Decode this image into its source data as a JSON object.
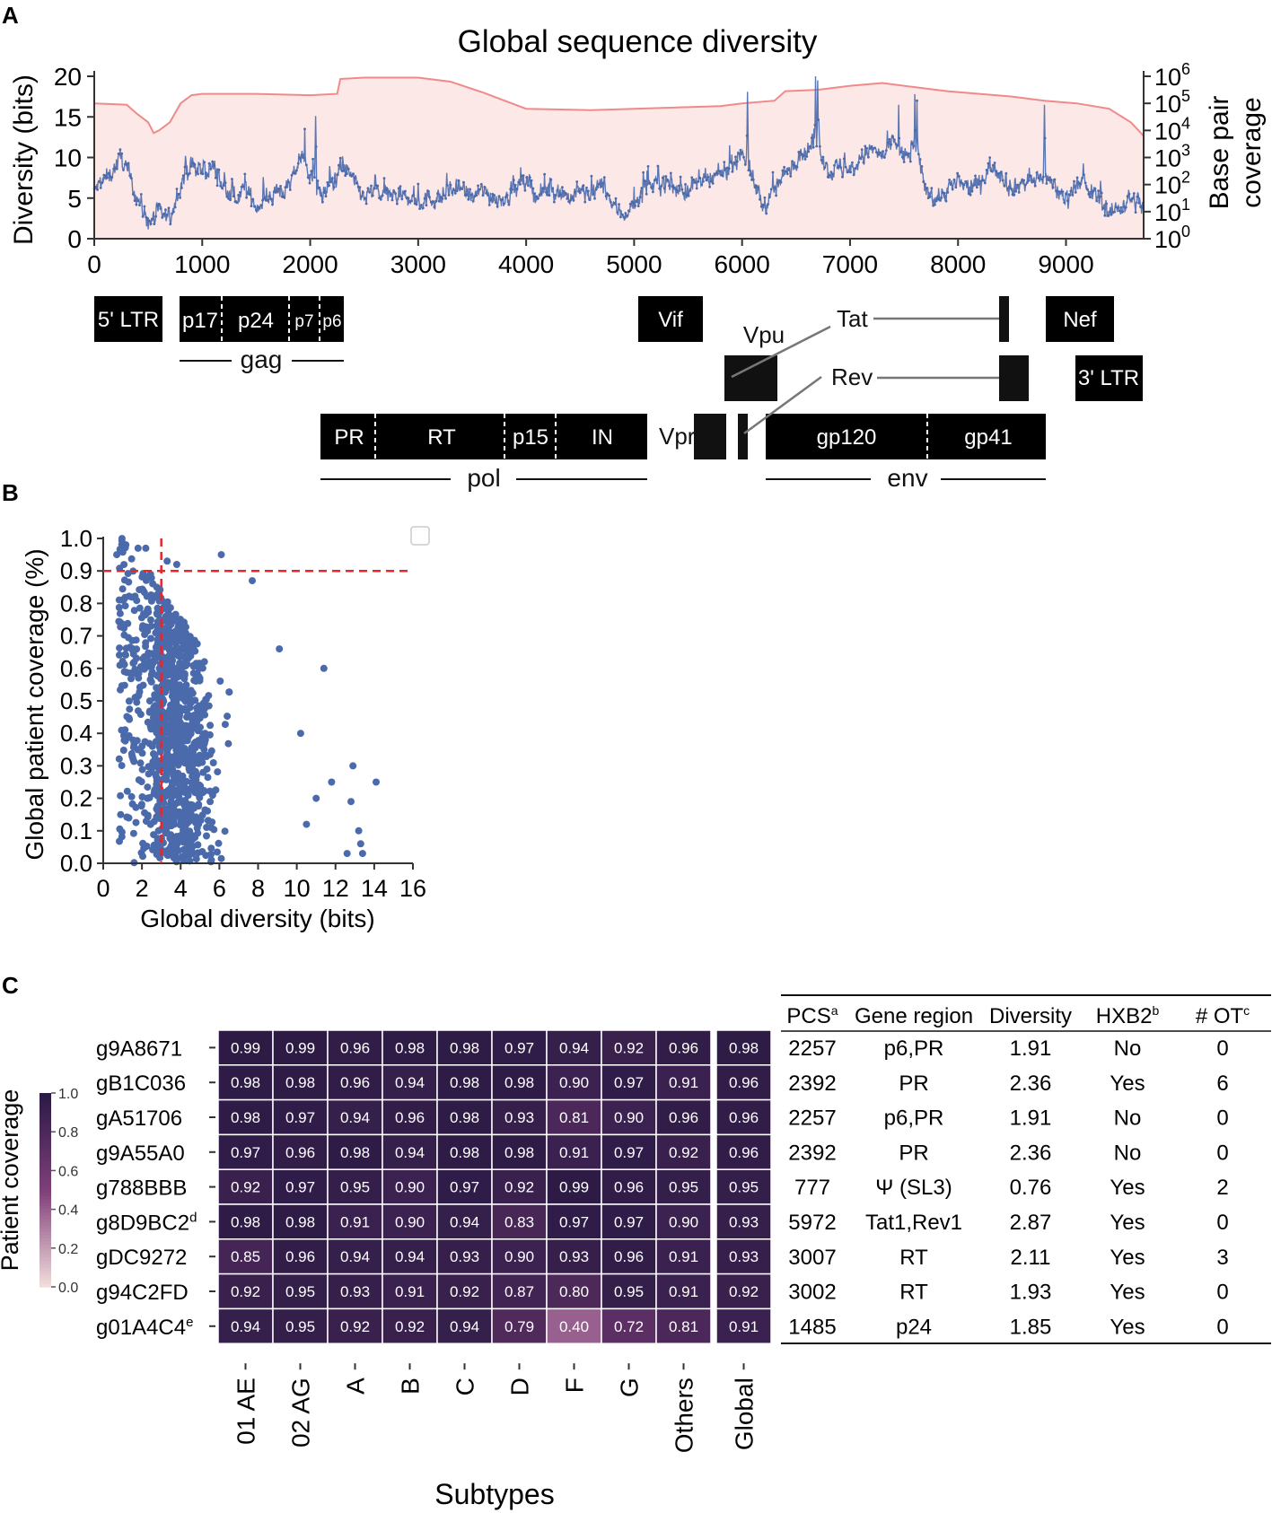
{
  "panels": {
    "a": "A",
    "b": "B",
    "c": "C"
  },
  "colors": {
    "series": "#4a6aab",
    "coverage_line": "#f08a8a",
    "coverage_fill": "#fde8e8",
    "threshold": "#e8262a",
    "gene_box": "#000000",
    "heat_low": "#f4e1dd",
    "heat_high": "#2b1a45"
  },
  "chart_data": [
    {
      "type": "line",
      "panel": "A",
      "title": "Global sequence diversity",
      "ylabel": "Diversity (bits)",
      "y2label": [
        "Base pair",
        "coverage"
      ],
      "xlim": [
        0,
        9719
      ],
      "ylim": [
        0,
        20
      ],
      "x_ticks": [
        0,
        1000,
        2000,
        3000,
        4000,
        5000,
        6000,
        7000,
        8000,
        9000
      ],
      "y_ticks": [
        0,
        5,
        10,
        15,
        20
      ],
      "y2_ticks": [
        {
          "base": "10",
          "exp": "0"
        },
        {
          "base": "10",
          "exp": "1"
        },
        {
          "base": "10",
          "exp": "2"
        },
        {
          "base": "10",
          "exp": "3"
        },
        {
          "base": "10",
          "exp": "4"
        },
        {
          "base": "10",
          "exp": "5"
        },
        {
          "base": "10",
          "exp": "6"
        }
      ],
      "y2_range_log10": [
        0,
        6
      ],
      "coverage_log10": [
        [
          0,
          5.0
        ],
        [
          300,
          4.95
        ],
        [
          400,
          4.6
        ],
        [
          500,
          4.3
        ],
        [
          550,
          3.9
        ],
        [
          600,
          4.0
        ],
        [
          700,
          4.3
        ],
        [
          800,
          5.0
        ],
        [
          900,
          5.3
        ],
        [
          1000,
          5.35
        ],
        [
          1500,
          5.35
        ],
        [
          2000,
          5.3
        ],
        [
          2250,
          5.35
        ],
        [
          2280,
          5.9
        ],
        [
          2500,
          5.95
        ],
        [
          3000,
          5.95
        ],
        [
          3300,
          5.8
        ],
        [
          3600,
          5.4
        ],
        [
          4000,
          4.8
        ],
        [
          4600,
          4.75
        ],
        [
          5000,
          4.8
        ],
        [
          5400,
          4.85
        ],
        [
          5800,
          4.9
        ],
        [
          6000,
          5.0
        ],
        [
          6300,
          5.1
        ],
        [
          6400,
          5.45
        ],
        [
          6700,
          5.5
        ],
        [
          7000,
          5.65
        ],
        [
          7300,
          5.75
        ],
        [
          7600,
          5.6
        ],
        [
          7900,
          5.45
        ],
        [
          8200,
          5.35
        ],
        [
          8500,
          5.25
        ],
        [
          8800,
          5.1
        ],
        [
          9100,
          5.0
        ],
        [
          9400,
          4.8
        ],
        [
          9600,
          4.3
        ],
        [
          9719,
          3.8
        ]
      ],
      "diversity_profile": [
        [
          0,
          6
        ],
        [
          150,
          8
        ],
        [
          250,
          10
        ],
        [
          400,
          5
        ],
        [
          500,
          2
        ],
        [
          600,
          3
        ],
        [
          700,
          2.5
        ],
        [
          800,
          7
        ],
        [
          900,
          9
        ],
        [
          1000,
          8
        ],
        [
          1100,
          9
        ],
        [
          1200,
          6
        ],
        [
          1300,
          5
        ],
        [
          1400,
          6
        ],
        [
          1500,
          4
        ],
        [
          1600,
          5
        ],
        [
          1700,
          6
        ],
        [
          1800,
          6
        ],
        [
          1900,
          10
        ],
        [
          2000,
          8
        ],
        [
          2100,
          5
        ],
        [
          2200,
          7
        ],
        [
          2300,
          9
        ],
        [
          2400,
          7
        ],
        [
          2500,
          5
        ],
        [
          2600,
          6
        ],
        [
          2700,
          5
        ],
        [
          2800,
          5.5
        ],
        [
          2900,
          5
        ],
        [
          3000,
          4.5
        ],
        [
          3100,
          5
        ],
        [
          3200,
          5
        ],
        [
          3300,
          6
        ],
        [
          3400,
          6
        ],
        [
          3500,
          5
        ],
        [
          3600,
          6
        ],
        [
          3700,
          5
        ],
        [
          3800,
          5
        ],
        [
          3900,
          6
        ],
        [
          4000,
          7
        ],
        [
          4100,
          5
        ],
        [
          4200,
          6
        ],
        [
          4300,
          6
        ],
        [
          4400,
          5
        ],
        [
          4500,
          6
        ],
        [
          4600,
          5
        ],
        [
          4700,
          7
        ],
        [
          4800,
          4
        ],
        [
          4900,
          3
        ],
        [
          5000,
          4
        ],
        [
          5100,
          6
        ],
        [
          5200,
          7
        ],
        [
          5300,
          7
        ],
        [
          5400,
          6
        ],
        [
          5500,
          6
        ],
        [
          5600,
          7
        ],
        [
          5700,
          7
        ],
        [
          5800,
          8
        ],
        [
          5900,
          9
        ],
        [
          6000,
          11
        ],
        [
          6100,
          7
        ],
        [
          6200,
          4
        ],
        [
          6300,
          6
        ],
        [
          6400,
          8
        ],
        [
          6500,
          10
        ],
        [
          6600,
          11
        ],
        [
          6700,
          12
        ],
        [
          6800,
          8
        ],
        [
          6900,
          9
        ],
        [
          7000,
          8
        ],
        [
          7100,
          10
        ],
        [
          7200,
          11
        ],
        [
          7300,
          10
        ],
        [
          7400,
          12
        ],
        [
          7500,
          10
        ],
        [
          7600,
          11
        ],
        [
          7700,
          6
        ],
        [
          7800,
          5
        ],
        [
          7900,
          6
        ],
        [
          8000,
          7
        ],
        [
          8100,
          6
        ],
        [
          8200,
          7
        ],
        [
          8300,
          9
        ],
        [
          8400,
          8
        ],
        [
          8500,
          6
        ],
        [
          8600,
          7
        ],
        [
          8700,
          7
        ],
        [
          8800,
          8
        ],
        [
          8900,
          6
        ],
        [
          9000,
          5
        ],
        [
          9100,
          7
        ],
        [
          9200,
          6
        ],
        [
          9300,
          5
        ],
        [
          9400,
          3
        ],
        [
          9500,
          4
        ],
        [
          9600,
          5
        ],
        [
          9719,
          4
        ]
      ],
      "diversity_peaks": [
        [
          2050,
          15.1
        ],
        [
          6050,
          18.1
        ],
        [
          6680,
          20.0
        ],
        [
          7600,
          17.8
        ],
        [
          8800,
          16.5
        ],
        [
          6700,
          19.5
        ],
        [
          7620,
          17.0
        ],
        [
          1950,
          13.5
        ],
        [
          7450,
          16.5
        ]
      ]
    },
    {
      "type": "scatter",
      "panel": "B",
      "xlabel": "Global diversity (bits)",
      "ylabel": "Global patient coverage (%)",
      "xlim": [
        0,
        16
      ],
      "ylim": [
        0,
        1
      ],
      "x_ticks": [
        0,
        2,
        4,
        6,
        8,
        10,
        12,
        14,
        16
      ],
      "y_ticks": [
        "0.0",
        "0.1",
        "0.2",
        "0.3",
        "0.4",
        "0.5",
        "0.6",
        "0.7",
        "0.8",
        "0.9",
        "1.0"
      ],
      "threshold_x": 3.0,
      "threshold_y": 0.9,
      "point_count": 1100,
      "outliers": [
        [
          0.7,
          0.95
        ],
        [
          1.8,
          0.97
        ],
        [
          2.2,
          0.97
        ],
        [
          3.3,
          0.93
        ],
        [
          3.8,
          0.92
        ],
        [
          6.1,
          0.95
        ],
        [
          7.7,
          0.87
        ],
        [
          9.1,
          0.66
        ],
        [
          11.4,
          0.6
        ],
        [
          10.2,
          0.4
        ],
        [
          11.8,
          0.25
        ],
        [
          12.9,
          0.3
        ],
        [
          14.1,
          0.25
        ],
        [
          12.8,
          0.19
        ],
        [
          13.2,
          0.1
        ],
        [
          13.3,
          0.06
        ],
        [
          12.6,
          0.03
        ],
        [
          13.4,
          0.03
        ],
        [
          11.0,
          0.2
        ],
        [
          10.5,
          0.12
        ],
        [
          0.9,
          0.15
        ],
        [
          1.0,
          0.81
        ]
      ]
    },
    {
      "type": "heatmap",
      "panel": "C",
      "colorbar_label": "Patient coverage",
      "colorbar_ticks": [
        "0.0",
        "0.2",
        "0.4",
        "0.6",
        "0.8",
        "1.0"
      ],
      "xlabel": "Subtypes",
      "columns": [
        "01 AE",
        "02 AG",
        "A",
        "B",
        "C",
        "D",
        "F",
        "G",
        "Others"
      ],
      "global_column": "Global",
      "rows": [
        {
          "name": "g9A8671",
          "sup": "",
          "values": [
            "0.99",
            "0.99",
            "0.96",
            "0.98",
            "0.98",
            "0.97",
            "0.94",
            "0.92",
            "0.96"
          ],
          "global": "0.98"
        },
        {
          "name": "gB1C036",
          "sup": "",
          "values": [
            "0.98",
            "0.98",
            "0.96",
            "0.94",
            "0.98",
            "0.98",
            "0.90",
            "0.97",
            "0.91"
          ],
          "global": "0.96"
        },
        {
          "name": "gA51706",
          "sup": "",
          "values": [
            "0.98",
            "0.97",
            "0.94",
            "0.96",
            "0.98",
            "0.93",
            "0.81",
            "0.90",
            "0.96"
          ],
          "global": "0.96"
        },
        {
          "name": "g9A55A0",
          "sup": "",
          "values": [
            "0.97",
            "0.96",
            "0.98",
            "0.94",
            "0.98",
            "0.98",
            "0.91",
            "0.97",
            "0.92"
          ],
          "global": "0.96"
        },
        {
          "name": "g788BBB",
          "sup": "",
          "values": [
            "0.92",
            "0.97",
            "0.95",
            "0.90",
            "0.97",
            "0.92",
            "0.99",
            "0.96",
            "0.95"
          ],
          "global": "0.95"
        },
        {
          "name": "g8D9BC2",
          "sup": "d",
          "values": [
            "0.98",
            "0.98",
            "0.91",
            "0.90",
            "0.94",
            "0.83",
            "0.97",
            "0.97",
            "0.90"
          ],
          "global": "0.93"
        },
        {
          "name": "gDC9272",
          "sup": "",
          "values": [
            "0.85",
            "0.96",
            "0.94",
            "0.94",
            "0.93",
            "0.90",
            "0.93",
            "0.96",
            "0.91"
          ],
          "global": "0.93"
        },
        {
          "name": "g94C2FD",
          "sup": "",
          "values": [
            "0.92",
            "0.95",
            "0.93",
            "0.91",
            "0.92",
            "0.87",
            "0.80",
            "0.95",
            "0.91"
          ],
          "global": "0.92"
        },
        {
          "name": "g01A4C4",
          "sup": "e",
          "values": [
            "0.94",
            "0.95",
            "0.92",
            "0.92",
            "0.94",
            "0.79",
            "0.40",
            "0.72",
            "0.81"
          ],
          "global": "0.91"
        }
      ]
    }
  ],
  "genome_map": {
    "boxes": [
      {
        "id": "ltr5",
        "label": "5' LTR"
      },
      {
        "id": "p17",
        "label": "p17"
      },
      {
        "id": "p24",
        "label": "p24"
      },
      {
        "id": "p7",
        "label": "p7"
      },
      {
        "id": "p6",
        "label": "p6"
      },
      {
        "id": "vif",
        "label": "Vif"
      },
      {
        "id": "nef",
        "label": "Nef"
      },
      {
        "id": "ltr3",
        "label": "3' LTR"
      },
      {
        "id": "pr",
        "label": "PR"
      },
      {
        "id": "rt",
        "label": "RT"
      },
      {
        "id": "p15",
        "label": "p15"
      },
      {
        "id": "in",
        "label": "IN"
      },
      {
        "id": "gp120",
        "label": "gp120"
      },
      {
        "id": "gp41",
        "label": "gp41"
      }
    ],
    "labels": {
      "gag": "gag",
      "pol": "pol",
      "env": "env",
      "vpu": "Vpu",
      "vpr": "Vpr",
      "tat": "Tat",
      "rev": "Rev"
    }
  },
  "table": {
    "headers": [
      {
        "text": "PCS",
        "sup": "a"
      },
      {
        "text": "Gene region",
        "sup": ""
      },
      {
        "text": "Diversity",
        "sup": ""
      },
      {
        "text": "HXB2",
        "sup": "b"
      },
      {
        "text": "# OT",
        "sup": "c"
      }
    ],
    "rows": [
      [
        "2257",
        "p6,PR",
        "1.91",
        "No",
        "0"
      ],
      [
        "2392",
        "PR",
        "2.36",
        "Yes",
        "6"
      ],
      [
        "2257",
        "p6,PR",
        "1.91",
        "No",
        "0"
      ],
      [
        "2392",
        "PR",
        "2.36",
        "No",
        "0"
      ],
      [
        "777",
        "Ψ (SL3)",
        "0.76",
        "Yes",
        "2"
      ],
      [
        "5972",
        "Tat1,Rev1",
        "2.87",
        "Yes",
        "0"
      ],
      [
        "3007",
        "RT",
        "2.11",
        "Yes",
        "3"
      ],
      [
        "3002",
        "RT",
        "1.93",
        "Yes",
        "0"
      ],
      [
        "1485",
        "p24",
        "1.85",
        "Yes",
        "0"
      ]
    ]
  }
}
